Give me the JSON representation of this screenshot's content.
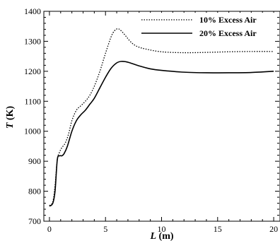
{
  "chart_data": {
    "type": "line",
    "title": "",
    "xlabel": {
      "var": "L",
      "unit": " (m)"
    },
    "ylabel": {
      "var": "T",
      "unit": " (K)"
    },
    "xlim": [
      -0.5,
      20.5
    ],
    "ylim": [
      700,
      1400
    ],
    "xticks": [
      0,
      5,
      10,
      15,
      20
    ],
    "yticks": [
      700,
      800,
      900,
      1000,
      1100,
      1200,
      1300,
      1400
    ],
    "legend_position": "top-right",
    "grid": false,
    "series": [
      {
        "name": "10% Excess Air",
        "style": "dotted",
        "color": "#000000",
        "x": [
          0,
          0.3,
          0.5,
          0.7,
          0.9,
          1.1,
          1.4,
          1.7,
          2.0,
          2.4,
          2.8,
          3.2,
          3.6,
          4.0,
          4.5,
          5.0,
          5.5,
          5.8,
          6.1,
          6.4,
          6.8,
          7.2,
          7.7,
          8.5,
          10,
          12,
          14,
          16,
          18,
          20
        ],
        "values": [
          752,
          765,
          820,
          905,
          930,
          945,
          960,
          990,
          1035,
          1070,
          1085,
          1100,
          1120,
          1150,
          1200,
          1260,
          1315,
          1335,
          1342,
          1335,
          1318,
          1300,
          1285,
          1275,
          1265,
          1262,
          1263,
          1265,
          1266,
          1266
        ]
      },
      {
        "name": "20% Excess Air",
        "style": "solid",
        "color": "#000000",
        "x": [
          0,
          0.3,
          0.5,
          0.7,
          0.9,
          1.1,
          1.3,
          1.6,
          2.0,
          2.4,
          2.8,
          3.2,
          3.6,
          4.0,
          4.5,
          5.0,
          5.5,
          6.0,
          6.4,
          6.8,
          7.2,
          8.0,
          9.0,
          10,
          12,
          14,
          16,
          18,
          20
        ],
        "values": [
          750,
          760,
          800,
          905,
          918,
          918,
          925,
          950,
          1000,
          1035,
          1055,
          1070,
          1090,
          1110,
          1145,
          1180,
          1210,
          1228,
          1233,
          1232,
          1228,
          1218,
          1208,
          1203,
          1197,
          1195,
          1195,
          1196,
          1200
        ]
      }
    ]
  }
}
